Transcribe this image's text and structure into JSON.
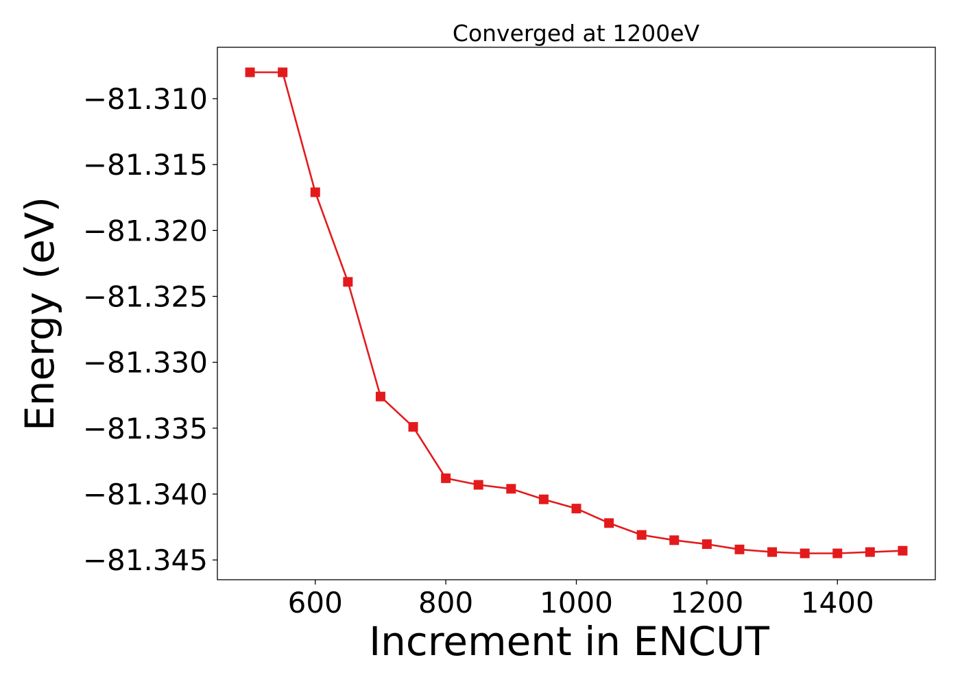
{
  "chart_data": {
    "type": "line",
    "title": "Converged at 1200eV",
    "xlabel": "Increment in ENCUT",
    "ylabel": "Energy (eV)",
    "x": [
      500,
      550,
      600,
      650,
      700,
      750,
      800,
      850,
      900,
      950,
      1000,
      1050,
      1100,
      1150,
      1200,
      1250,
      1300,
      1350,
      1400,
      1450,
      1500
    ],
    "series": [
      {
        "values": [
          -81.308,
          -81.308,
          -81.3171,
          -81.3239,
          -81.3326,
          -81.3349,
          -81.3388,
          -81.3393,
          -81.3396,
          -81.3404,
          -81.3411,
          -81.3422,
          -81.3431,
          -81.3435,
          -81.3438,
          -81.3442,
          -81.3444,
          -81.3445,
          -81.3445,
          -81.3444,
          -81.3443
        ],
        "color": "#e31a1c",
        "marker": "square"
      }
    ],
    "xlim": [
      450,
      1550
    ],
    "ylim": [
      -81.3465,
      -81.3061
    ],
    "xticks": [
      600,
      800,
      1000,
      1200,
      1400
    ],
    "xtick_labels": [
      "600",
      "800",
      "1000",
      "1200",
      "1400"
    ],
    "yticks": [
      -81.31,
      -81.315,
      -81.32,
      -81.325,
      -81.33,
      -81.335,
      -81.34,
      -81.345
    ],
    "ytick_labels": [
      "−81.310",
      "−81.315",
      "−81.320",
      "−81.325",
      "−81.330",
      "−81.335",
      "−81.340",
      "−81.345"
    ],
    "grid": false,
    "legend": "none"
  }
}
